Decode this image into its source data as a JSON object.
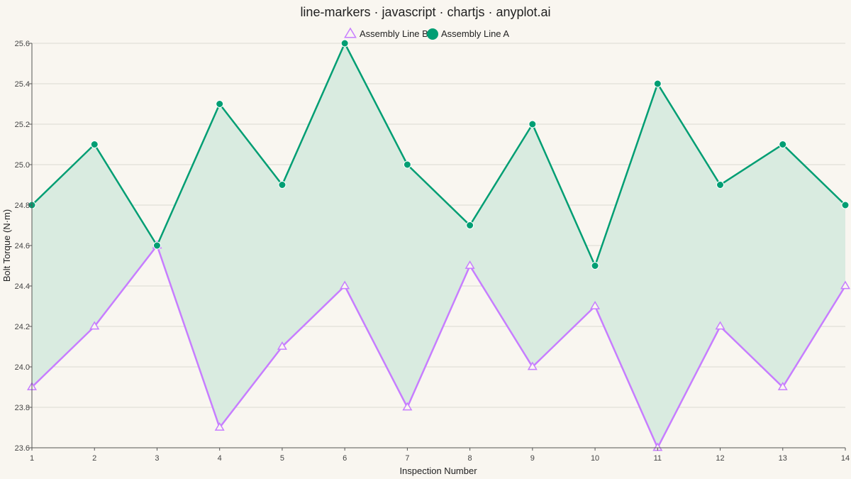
{
  "chart_data": {
    "type": "line",
    "title": "line-markers · javascript · chartjs · anyplot.ai",
    "xlabel": "Inspection Number",
    "ylabel": "Bolt Torque (N·m)",
    "x": [
      1,
      2,
      3,
      4,
      5,
      6,
      7,
      8,
      9,
      10,
      11,
      12,
      13,
      14
    ],
    "x_tick_labels": [
      "1",
      "2",
      "3",
      "4",
      "5",
      "6",
      "7",
      "8",
      "9",
      "10",
      "11",
      "12",
      "13",
      "14"
    ],
    "ylim": [
      23.6,
      25.6
    ],
    "y_ticks": [
      23.6,
      23.8,
      24.0,
      24.2,
      24.4,
      24.6,
      24.8,
      25.0,
      25.2,
      25.4,
      25.6
    ],
    "y_tick_labels": [
      "23.6",
      "23.8",
      "24.0",
      "24.2",
      "24.4",
      "24.6",
      "24.8",
      "25.0",
      "25.2",
      "25.4",
      "25.6"
    ],
    "grid": true,
    "legend_position": "top-center",
    "series": [
      {
        "name": "Assembly Line B",
        "marker": "triangle",
        "color": "#C77DFF",
        "values": [
          23.9,
          24.2,
          24.6,
          23.7,
          24.1,
          24.4,
          23.8,
          24.5,
          24.0,
          24.3,
          23.6,
          24.2,
          23.9,
          24.4
        ]
      },
      {
        "name": "Assembly Line A",
        "marker": "circle",
        "color": "#009E73",
        "fill": "fill-to-previous",
        "fill_color": "#D9EBE0",
        "values": [
          24.8,
          25.1,
          24.6,
          25.3,
          24.9,
          25.6,
          25.0,
          24.7,
          25.2,
          24.5,
          25.4,
          24.9,
          25.1,
          24.8
        ]
      }
    ]
  }
}
